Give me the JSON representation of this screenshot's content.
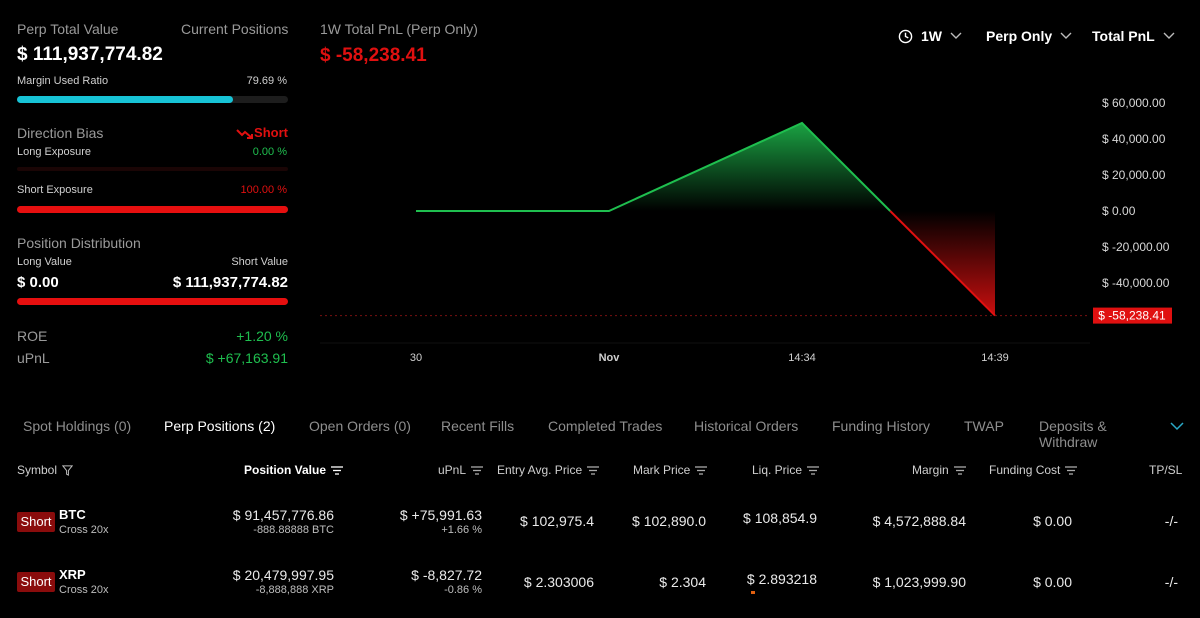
{
  "summary": {
    "perp_total_label": "Perp Total Value",
    "current_positions_label": "Current Positions",
    "perp_total_value": "$ 111,937,774.82",
    "margin_used_label": "Margin Used Ratio",
    "margin_used_value": "79.69 %",
    "margin_used_fraction": 0.7969,
    "direction_bias_label": "Direction Bias",
    "direction_bias_value": "Short",
    "long_exposure_label": "Long Exposure",
    "long_exposure_value": "0.00 %",
    "long_exposure_fraction": 0,
    "short_exposure_label": "Short Exposure",
    "short_exposure_value": "100.00 %",
    "short_exposure_fraction": 1.0,
    "position_distribution_label": "Position Distribution",
    "long_value_label": "Long Value",
    "short_value_label": "Short Value",
    "long_value": "$ 0.00",
    "short_value": "$ 111,937,774.82",
    "roe_label": "ROE",
    "roe_value": "+1.20 %",
    "upnl_label": "uPnL",
    "upnl_value": "$ +67,163.91"
  },
  "pnl_header": {
    "title": "1W Total PnL (Perp Only)",
    "value": "$ -58,238.41"
  },
  "dropdowns": {
    "range": "1W",
    "scope": "Perp Only",
    "metric": "Total PnL"
  },
  "chart_data": {
    "type": "line",
    "x": [
      "30",
      "Nov",
      "14:34",
      "14:39"
    ],
    "x_points": [
      0,
      1,
      2,
      3
    ],
    "series_points": [
      {
        "x": 0,
        "y": 0
      },
      {
        "x": 1,
        "y": 0
      },
      {
        "x": 2,
        "y": 49000
      },
      {
        "x": 3,
        "y": -58238.41
      }
    ],
    "ylim": [
      -60000,
      65000
    ],
    "yticks": [
      60000,
      40000,
      20000,
      0,
      -20000,
      -40000
    ],
    "ytick_labels": [
      "$ 60,000.00",
      "$ 40,000.00",
      "$ 20,000.00",
      "$ 0.00",
      "$ -20,000.00",
      "$ -40,000.00"
    ],
    "xtick_labels": [
      "30",
      "Nov",
      "14:34",
      "14:39"
    ],
    "last_value_label": "$ -58,238.41",
    "colors": {
      "positive": "#1fbf4f",
      "negative": "#e01010"
    }
  },
  "tabs": [
    "Spot Holdings (0)",
    "Perp Positions (2)",
    "Open Orders (0)",
    "Recent Fills",
    "Completed Trades",
    "Historical Orders",
    "Funding History",
    "TWAP",
    "Deposits & Withdraw"
  ],
  "table": {
    "headers": {
      "symbol": "Symbol",
      "position_value": "Position Value",
      "upnl": "uPnL",
      "entry": "Entry Avg. Price",
      "mark": "Mark Price",
      "liq": "Liq. Price",
      "margin": "Margin",
      "funding": "Funding Cost",
      "tpsl": "TP/SL"
    },
    "rows": [
      {
        "side": "Short",
        "symbol": "BTC",
        "mode": "Cross 20x",
        "position_value": "$ 91,457,776.86",
        "size": "-888.88888 BTC",
        "upnl": "$ +75,991.63",
        "upnl_pct": "+1.66 %",
        "entry": "$ 102,975.4",
        "mark": "$ 102,890.0",
        "liq": "$ 108,854.9",
        "margin": "$ 4,572,888.84",
        "funding": "$ 0.00",
        "tpsl": "-/-"
      },
      {
        "side": "Short",
        "symbol": "XRP",
        "mode": "Cross 20x",
        "position_value": "$ 20,479,997.95",
        "size": "-8,888,888 XRP",
        "upnl": "$ -8,827.72",
        "upnl_pct": "-0.86 %",
        "entry": "$ 2.303006",
        "mark": "$ 2.304",
        "liq": "$ 2.893218",
        "margin": "$ 1,023,999.90",
        "funding": "$ 0.00",
        "tpsl": "-/-"
      }
    ]
  }
}
